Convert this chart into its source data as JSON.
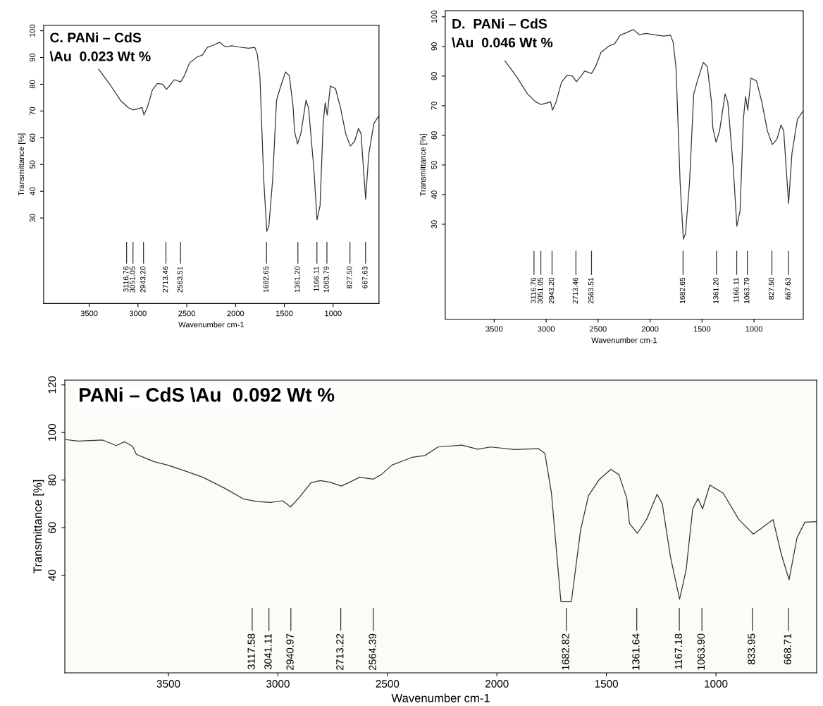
{
  "chart_data": [
    {
      "type": "line",
      "title": "C. PANi – CdS\n\\Au  0.023 Wt %",
      "xlabel": "Wavenumber cm-1",
      "ylabel": "Transmittance [%]",
      "xlim": [
        3967,
        530
      ],
      "ylim": [
        -2,
        102
      ],
      "xticks": [
        3500,
        3000,
        2500,
        2000,
        1500,
        1000
      ],
      "yticks": [
        30,
        40,
        50,
        60,
        70,
        80,
        90,
        100
      ],
      "x": [
        3403,
        3285,
        3180,
        3101,
        3049,
        2983,
        2957,
        2939,
        2905,
        2852,
        2800,
        2747,
        2708,
        2668,
        2629,
        2563,
        2524,
        2472,
        2393,
        2341,
        2288,
        2236,
        2162,
        2104,
        2039,
        1960,
        1868,
        1803,
        1777,
        1750,
        1711,
        1680,
        1659,
        1620,
        1580,
        1541,
        1488,
        1449,
        1409,
        1396,
        1365,
        1331,
        1278,
        1252,
        1199,
        1165,
        1134,
        1102,
        1081,
        1060,
        1029,
        976,
        924,
        871,
        824,
        779,
        740,
        714,
        667,
        635,
        582,
        530
      ],
      "series": [
        {
          "color": "#333333",
          "values": [
            85.6,
            79.8,
            74,
            71.3,
            70.4,
            71,
            71.3,
            68.5,
            71.2,
            77.9,
            80.3,
            80,
            78.1,
            79.8,
            81.7,
            80.9,
            83.2,
            88,
            90.2,
            90.9,
            93.8,
            94.5,
            95.7,
            94,
            94.4,
            93.9,
            93.5,
            93.8,
            91.3,
            82.7,
            44.2,
            25,
            26.9,
            44.2,
            74,
            78.8,
            84.6,
            83.2,
            71.2,
            62.5,
            57.7,
            61.5,
            74,
            71.2,
            49,
            29.3,
            34.6,
            65.4,
            73.1,
            68.5,
            79.3,
            78.4,
            71.2,
            61.5,
            56.9,
            58.7,
            63.5,
            61.5,
            37,
            53.8,
            65.4,
            68.3
          ]
        }
      ],
      "ref_lines": [
        {
          "axis": "x",
          "value": 3116.76,
          "label": "3116.76"
        },
        {
          "axis": "x",
          "value": 3051.05,
          "label": "3051.05"
        },
        {
          "axis": "x",
          "value": 2943.2,
          "label": "2943.20"
        },
        {
          "axis": "x",
          "value": 2713.46,
          "label": "2713.46"
        },
        {
          "axis": "x",
          "value": 2563.51,
          "label": "2563.51"
        },
        {
          "axis": "x",
          "value": 1682.65,
          "label": "1682.65"
        },
        {
          "axis": "x",
          "value": 1361.2,
          "label": "1361.20"
        },
        {
          "axis": "x",
          "value": 1166.11,
          "label": "1166.11"
        },
        {
          "axis": "x",
          "value": 1063.79,
          "label": "1063.79"
        },
        {
          "axis": "x",
          "value": 827.5,
          "label": "827.50"
        },
        {
          "axis": "x",
          "value": 667.63,
          "label": "667.63"
        }
      ]
    },
    {
      "type": "line",
      "title": "D.  PANi – CdS\n\\Au  0.046 Wt %",
      "xlabel": "Wavenumber cm-1",
      "ylabel": "Transmittance [%]",
      "xlim": [
        3971,
        526
      ],
      "ylim": [
        -2,
        102
      ],
      "xticks": [
        3500,
        3000,
        2500,
        2000,
        1500,
        1000
      ],
      "yticks": [
        30,
        40,
        50,
        60,
        70,
        80,
        90,
        100
      ],
      "x": [
        3396,
        3285,
        3180,
        3101,
        3049,
        2983,
        2957,
        2939,
        2905,
        2852,
        2800,
        2747,
        2708,
        2668,
        2629,
        2563,
        2524,
        2472,
        2393,
        2341,
        2288,
        2236,
        2162,
        2104,
        2039,
        1960,
        1868,
        1803,
        1777,
        1750,
        1711,
        1680,
        1659,
        1620,
        1580,
        1541,
        1488,
        1449,
        1409,
        1396,
        1365,
        1331,
        1278,
        1252,
        1199,
        1165,
        1134,
        1102,
        1081,
        1060,
        1029,
        976,
        924,
        871,
        824,
        779,
        740,
        714,
        667,
        635,
        582,
        526
      ],
      "series": [
        {
          "color": "#333333",
          "values": [
            85.1,
            79.8,
            74,
            71.3,
            70.4,
            71,
            71.3,
            68.5,
            71.2,
            77.9,
            80.3,
            80,
            78.1,
            79.8,
            81.7,
            80.9,
            83.2,
            88,
            90.2,
            90.9,
            93.8,
            94.5,
            95.7,
            94,
            94.4,
            93.9,
            93.5,
            93.8,
            91.3,
            82.7,
            44.2,
            25,
            26.9,
            44.2,
            74,
            78.8,
            84.6,
            83.2,
            71.2,
            62.5,
            57.7,
            61.5,
            74,
            71.2,
            49,
            29.3,
            34.6,
            65.4,
            73.1,
            68.5,
            79.3,
            78.4,
            71.2,
            61.5,
            56.9,
            58.7,
            63.5,
            61.5,
            37,
            53.8,
            65.4,
            68.3
          ]
        }
      ],
      "ref_lines": [
        {
          "axis": "x",
          "value": 3116.76,
          "label": "3116.76"
        },
        {
          "axis": "x",
          "value": 3051.05,
          "label": "3051.05"
        },
        {
          "axis": "x",
          "value": 2943.2,
          "label": "2943.20"
        },
        {
          "axis": "x",
          "value": 2713.46,
          "label": "2713.46"
        },
        {
          "axis": "x",
          "value": 2563.51,
          "label": "2563.51"
        },
        {
          "axis": "x",
          "value": 1682.65,
          "label": "1682.65"
        },
        {
          "axis": "x",
          "value": 1361.2,
          "label": "1361.20"
        },
        {
          "axis": "x",
          "value": 1166.11,
          "label": "1166.11"
        },
        {
          "axis": "x",
          "value": 1063.79,
          "label": "1063.79"
        },
        {
          "axis": "x",
          "value": 827.5,
          "label": "827.50"
        },
        {
          "axis": "x",
          "value": 667.63,
          "label": "667.63"
        }
      ]
    },
    {
      "type": "line",
      "title": "PANi – CdS \\Au  0.092 Wt %",
      "xlabel": "Wavenumber cm-1",
      "ylabel": "Transmittance [%]",
      "xlim": [
        3973,
        540
      ],
      "ylim": [
        -1,
        122
      ],
      "xticks": [
        3500,
        3000,
        2500,
        2000,
        1500,
        1000
      ],
      "yticks": [
        40,
        60,
        80,
        100,
        120
      ],
      "x": [
        3970,
        3912,
        3800,
        3738,
        3701,
        3664,
        3646,
        3602,
        3565,
        3504,
        3430,
        3343,
        3244,
        3158,
        3096,
        3034,
        2979,
        2942,
        2898,
        2849,
        2806,
        2763,
        2711,
        2664,
        2627,
        2565,
        2528,
        2479,
        2417,
        2386,
        2329,
        2269,
        2160,
        2088,
        2028,
        1919,
        1811,
        1781,
        1751,
        1708,
        1660,
        1618,
        1582,
        1534,
        1480,
        1443,
        1407,
        1395,
        1359,
        1317,
        1269,
        1245,
        1208,
        1166,
        1136,
        1106,
        1082,
        1061,
        1028,
        967,
        895,
        829,
        739,
        702,
        666,
        630,
        594,
        540
      ],
      "series": [
        {
          "color": "#333333",
          "values": [
            97,
            96.4,
            96.8,
            94.5,
            96.1,
            94.2,
            90.8,
            89.1,
            87.7,
            86.3,
            84,
            81.2,
            76.6,
            72.1,
            71,
            70.6,
            71.3,
            68.7,
            73.2,
            78.9,
            79.8,
            79.1,
            77.5,
            79.5,
            81.2,
            80.4,
            82.3,
            86.3,
            88.5,
            89.6,
            90.3,
            93.9,
            94.7,
            93,
            93.9,
            92.8,
            93.2,
            91.2,
            74.5,
            29,
            29,
            59,
            73.4,
            80.1,
            84.5,
            82.3,
            72.3,
            61.8,
            57.6,
            63.4,
            74,
            70.1,
            47.9,
            29.9,
            42.3,
            67.9,
            72.3,
            67.9,
            77.9,
            74.5,
            63.4,
            57.3,
            63.4,
            49,
            38.1,
            55.7,
            62.3,
            62.5
          ]
        }
      ],
      "ref_lines": [
        {
          "axis": "x",
          "value": 3117.58,
          "label": "3117.58"
        },
        {
          "axis": "x",
          "value": 3041.11,
          "label": "3041.11"
        },
        {
          "axis": "x",
          "value": 2940.97,
          "label": "2940.97"
        },
        {
          "axis": "x",
          "value": 2713.22,
          "label": "2713.22"
        },
        {
          "axis": "x",
          "value": 2564.39,
          "label": "2564.39"
        },
        {
          "axis": "x",
          "value": 1682.82,
          "label": "1682.82"
        },
        {
          "axis": "x",
          "value": 1361.64,
          "label": "1361.64"
        },
        {
          "axis": "x",
          "value": 1167.18,
          "label": "1167.18"
        },
        {
          "axis": "x",
          "value": 1063.9,
          "label": "1063.90"
        },
        {
          "axis": "x",
          "value": 833.95,
          "label": "833.95"
        },
        {
          "axis": "x",
          "value": 668.71,
          "label": "668.71"
        }
      ]
    }
  ]
}
